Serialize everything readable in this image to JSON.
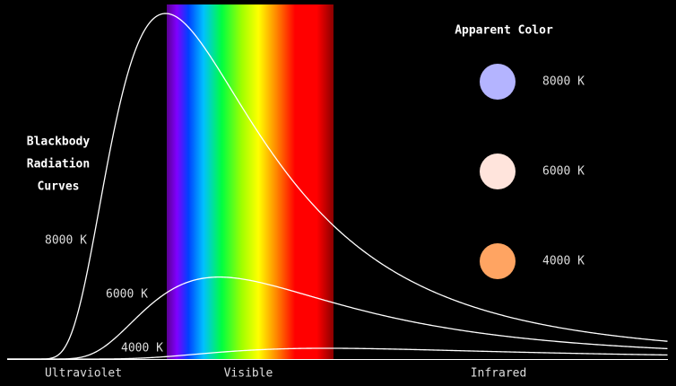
{
  "title": {
    "lines": [
      "Blackbody",
      "Radiation",
      "Curves"
    ]
  },
  "curves": [
    {
      "label": "8000 K"
    },
    {
      "label": "6000 K"
    },
    {
      "label": "4000 K"
    }
  ],
  "apparent_color": {
    "title": "Apparent Color",
    "swatches": [
      {
        "label": "8000 K",
        "color": "#b4b4ff"
      },
      {
        "label": "6000 K",
        "color": "#ffe4dc"
      },
      {
        "label": "4000 K",
        "color": "#ffa462"
      }
    ]
  },
  "regions": [
    "Ultraviolet",
    "Visible",
    "Infrared"
  ]
}
